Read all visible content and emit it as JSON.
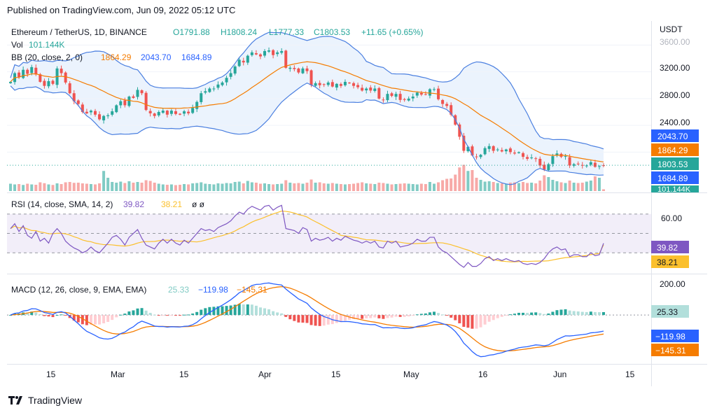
{
  "header": {
    "published": "Published on TradingView.com, Jun 09, 2022 05:12 UTC"
  },
  "footer": {
    "brand": "TradingView"
  },
  "colors": {
    "up": "#26a69a",
    "down": "#ef5350",
    "upVol": "#80cbc4",
    "downVol": "#f7a9a7",
    "bbBasis": "#f57c00",
    "bbBand": "#4a7fe0",
    "bbFill": "#dbeafb",
    "rsi": "#7e57c2",
    "rsiSma": "#fbc02d",
    "rsiFill": "#ede7f6",
    "macd": "#2962ff",
    "signal": "#f57c00",
    "histUp": "#26a69a",
    "histUpLight": "#b2dfdb",
    "histDown": "#ef5350",
    "histDownLight": "#ffcdd2",
    "lastPrice": "#26a69a"
  },
  "legend": {
    "main": {
      "symbol": "Ethereum / TetherUS, 1D, BINANCE",
      "o": "O1791.88",
      "h": "H1808.24",
      "l": "L1777.33",
      "c": "C1803.53",
      "chg": "+11.65 (+0.65%)"
    },
    "vol": {
      "label": "Vol",
      "value": "101.144K"
    },
    "bb": {
      "label": "BB (20, close, 2, 0)",
      "basis": "1864.29",
      "upper": "2043.70",
      "lower": "1684.89"
    },
    "rsi": {
      "label": "RSI (14, close, SMA, 14, 2)",
      "rsi": "39.82",
      "sma": "38.21",
      "extra": "ø ø"
    },
    "macd": {
      "label": "MACD (12, 26, close, 9, EMA, EMA)",
      "hist": "25.33",
      "macd": "−119.98",
      "signal": "−145.31"
    }
  },
  "price_axis": {
    "currency": "USDT",
    "ticks": [
      "3600.00",
      "3200.00",
      "2800.00",
      "2400.00"
    ]
  },
  "price_badges": {
    "upper": "2043.70",
    "basis": "1864.29",
    "close": "1803.53",
    "lower": "1684.89",
    "vol": "101.144K"
  },
  "rsi_axis": {
    "tick": "60.00",
    "badges": {
      "rsi": "39.82",
      "sma": "38.21"
    }
  },
  "macd_axis": {
    "tick": "200.00",
    "badges": {
      "hist": "25.33",
      "macd": "−119.98",
      "signal": "−145.31"
    }
  },
  "time_axis": [
    "15",
    "Mar",
    "15",
    "Apr",
    "15",
    "May",
    "16",
    "Jun",
    "15"
  ],
  "chart_data": {
    "type": "candlestick",
    "symbol": "ETH/USDT",
    "interval": "1D",
    "start_date": "2022-02-07",
    "price_range": [
      1450,
      3750
    ],
    "close": [
      3050,
      3180,
      3120,
      3230,
      3170,
      3270,
      3160,
      3050,
      2990,
      3060,
      3020,
      3250,
      3180,
      3040,
      2880,
      2760,
      2720,
      2600,
      2580,
      2620,
      2560,
      2490,
      2540,
      2550,
      2610,
      2700,
      2760,
      2700,
      2830,
      2810,
      2930,
      2880,
      2630,
      2580,
      2540,
      2600,
      2620,
      2560,
      2620,
      2570,
      2560,
      2610,
      2580,
      2660,
      2750,
      2880,
      2910,
      2950,
      2950,
      3010,
      3040,
      3110,
      3180,
      3280,
      3380,
      3340,
      3440,
      3490,
      3460,
      3430,
      3510,
      3520,
      3450,
      3490,
      3510,
      3260,
      3260,
      3240,
      3190,
      3250,
      3210,
      3000,
      3030,
      3000,
      3010,
      3040,
      2980,
      3020,
      2990,
      3050,
      3030,
      2990,
      2970,
      2920,
      2950,
      2920,
      2950,
      2800,
      2780,
      2870,
      2840,
      2870,
      2780,
      2780,
      2800,
      2830,
      2890,
      2860,
      2860,
      2940,
      2940,
      2790,
      2720,
      2690,
      2560,
      2410,
      2230,
      2020,
      2080,
      1950,
      1930,
      1960,
      2060,
      2090,
      2020,
      2040,
      2010,
      2040,
      2000,
      1980,
      2000,
      1930,
      1900,
      1920,
      1900,
      1800,
      1740,
      1820,
      1940,
      1980,
      1930,
      1940,
      1800,
      1820,
      1820,
      1800,
      1800,
      1850,
      1780,
      1790,
      1803.53
    ],
    "volume_k": [
      420,
      380,
      400,
      350,
      420,
      380,
      360,
      500,
      450,
      380,
      350,
      440,
      400,
      500,
      520,
      470,
      480,
      440,
      420,
      400,
      380,
      440,
      1150,
      760,
      520,
      480,
      540,
      460,
      560,
      480,
      520,
      480,
      620,
      580,
      480,
      420,
      380,
      360,
      380,
      340,
      360,
      400,
      380,
      440,
      460,
      500,
      420,
      400,
      380,
      440,
      420,
      460,
      440,
      520,
      540,
      440,
      580,
      500,
      480,
      420,
      440,
      400,
      380,
      400,
      420,
      620,
      480,
      440,
      460,
      420,
      480,
      660,
      480,
      500,
      440,
      420,
      460,
      420,
      400,
      380,
      400,
      420,
      460,
      500,
      440,
      420,
      400,
      480,
      460,
      420,
      380,
      400,
      420,
      440,
      420,
      400,
      380,
      420,
      400,
      520,
      420,
      500,
      620,
      700,
      720,
      940,
      1350,
      1500,
      1150,
      1200,
      760,
      640,
      540,
      560,
      520,
      460,
      440,
      420,
      480,
      500,
      460,
      520,
      460,
      480,
      440,
      600,
      900,
      800,
      640,
      560,
      500,
      460,
      600,
      480,
      460,
      480,
      540,
      600,
      840,
      760,
      101.144
    ],
    "rsi": [
      55,
      60,
      52,
      58,
      48,
      45,
      52,
      42,
      45,
      40,
      50,
      55,
      50,
      42,
      38,
      35,
      33,
      30,
      32,
      36,
      32,
      30,
      35,
      40,
      46,
      48,
      44,
      38,
      46,
      50,
      54,
      45,
      38,
      36,
      34,
      40,
      44,
      40,
      44,
      40,
      38,
      43,
      40,
      45,
      50,
      55,
      53,
      54,
      52,
      56,
      58,
      60,
      63,
      68,
      72,
      70,
      75,
      78,
      76,
      74,
      78,
      79,
      74,
      77,
      79,
      55,
      54,
      53,
      50,
      56,
      54,
      42,
      45,
      43,
      44,
      46,
      42,
      45,
      43,
      47,
      45,
      43,
      42,
      40,
      42,
      40,
      42,
      36,
      35,
      42,
      40,
      42,
      36,
      37,
      38,
      40,
      44,
      42,
      42,
      46,
      46,
      36,
      32,
      30,
      26,
      22,
      18,
      15,
      20,
      16,
      16,
      19,
      24,
      26,
      22,
      24,
      22,
      24,
      22,
      21,
      22,
      19,
      18,
      19,
      18,
      20,
      24,
      30,
      34,
      36,
      33,
      34,
      26,
      28,
      28,
      26,
      26,
      30,
      27,
      28,
      39.82
    ],
    "rsi_sma_end": 38.21,
    "rsi_levels": [
      70,
      50,
      30
    ],
    "macd_end": -119.98,
    "signal_end": -145.31,
    "hist_end": 25.33
  }
}
